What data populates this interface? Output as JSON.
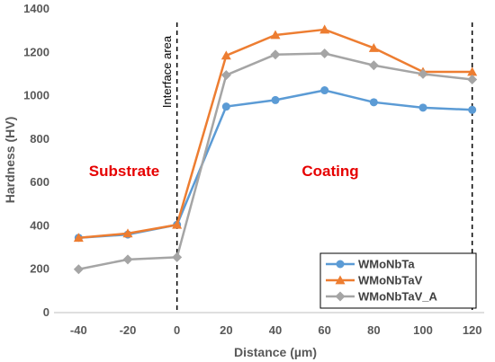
{
  "chart_data": {
    "type": "line",
    "xlabel": "Distance (µm)",
    "ylabel": "Hardness (HV)",
    "x": [
      -40,
      -20,
      0,
      20,
      40,
      60,
      80,
      100,
      120
    ],
    "xlim": [
      -50,
      130
    ],
    "xticks": [
      -40,
      -20,
      0,
      20,
      40,
      60,
      80,
      100,
      120
    ],
    "ylim": [
      0,
      1400
    ],
    "yticks": [
      0,
      200,
      400,
      600,
      800,
      1000,
      1200,
      1400
    ],
    "grid": false,
    "legend_position": "bottom-right",
    "series": [
      {
        "name": "WMoNbTa",
        "color": "#5b9bd5",
        "marker": "circle",
        "values": [
          345,
          360,
          405,
          950,
          980,
          1025,
          970,
          945,
          935
        ]
      },
      {
        "name": "WMoNbTaV",
        "color": "#ed7d31",
        "marker": "triangle",
        "values": [
          345,
          365,
          405,
          1185,
          1280,
          1305,
          1220,
          1110,
          1110
        ]
      },
      {
        "name": "WMoNbTaV_A",
        "color": "#a5a5a5",
        "marker": "diamond",
        "values": [
          200,
          245,
          255,
          1095,
          1190,
          1195,
          1140,
          1100,
          1075
        ]
      }
    ],
    "vlines": [
      0,
      120
    ],
    "annotations": {
      "interface": "Interface area",
      "substrate": "Substrate",
      "coating": "Coating"
    }
  }
}
